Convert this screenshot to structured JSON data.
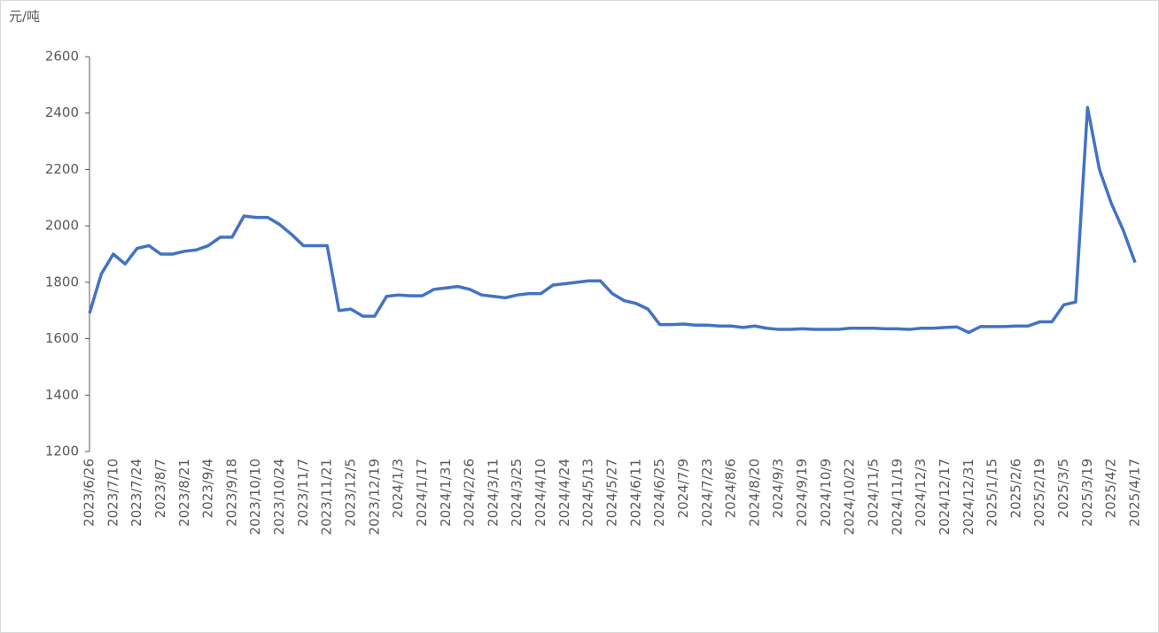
{
  "chart_data": {
    "type": "line",
    "y_label": "元/吨",
    "color": "#4472c4",
    "categories": [
      "2023/6/26",
      null,
      "2023/7/10",
      null,
      "2023/7/24",
      null,
      "2023/8/7",
      null,
      "2023/8/21",
      null,
      "2023/9/4",
      null,
      "2023/9/18",
      null,
      "2023/10/10",
      null,
      "2023/10/24",
      null,
      "2023/11/7",
      null,
      "2023/11/21",
      null,
      "2023/12/5",
      null,
      "2023/12/19",
      null,
      "2024/1/3",
      null,
      "2024/1/17",
      null,
      "2024/1/31",
      null,
      "2024/2/26",
      null,
      "2024/3/11",
      null,
      "2024/3/25",
      null,
      "2024/4/10",
      null,
      "2024/4/24",
      null,
      "2024/5/13",
      null,
      "2024/5/27",
      null,
      "2024/6/11",
      null,
      "2024/6/25",
      null,
      "2024/7/9",
      null,
      "2024/7/23",
      null,
      "2024/8/6",
      null,
      "2024/8/20",
      null,
      "2024/9/3",
      null,
      "2024/9/19",
      null,
      "2024/10/9",
      null,
      "2024/10/22",
      null,
      "2024/11/5",
      null,
      "2024/11/19",
      null,
      "2024/12/3",
      null,
      "2024/12/17",
      null,
      "2024/12/31",
      null,
      "2025/1/15",
      null,
      "2025/2/6",
      null,
      "2025/2/19",
      null,
      "2025/3/5",
      null,
      "2025/3/19",
      null,
      "2025/4/2",
      null,
      "2025/4/17"
    ],
    "values": [
      1690,
      1830,
      1900,
      1865,
      1920,
      1930,
      1900,
      1900,
      1910,
      1915,
      1930,
      1960,
      1960,
      2035,
      2030,
      2030,
      2005,
      1970,
      1930,
      1930,
      1930,
      1700,
      1705,
      1680,
      1680,
      1750,
      1755,
      1752,
      1752,
      1775,
      1780,
      1785,
      1775,
      1755,
      1750,
      1745,
      1755,
      1760,
      1760,
      1790,
      1795,
      1800,
      1805,
      1805,
      1760,
      1735,
      1725,
      1705,
      1650,
      1650,
      1652,
      1648,
      1648,
      1645,
      1645,
      1640,
      1645,
      1637,
      1633,
      1633,
      1635,
      1633,
      1633,
      1633,
      1637,
      1637,
      1637,
      1635,
      1635,
      1633,
      1637,
      1637,
      1640,
      1642,
      1622,
      1643,
      1643,
      1643,
      1645,
      1645,
      1660,
      1660,
      1720,
      1730,
      2420,
      2200,
      2080,
      1985,
      1870
    ],
    "ylim": [
      1200,
      2600
    ],
    "yticks": [
      1200,
      1400,
      1600,
      1800,
      2000,
      2200,
      2400,
      2600
    ]
  }
}
